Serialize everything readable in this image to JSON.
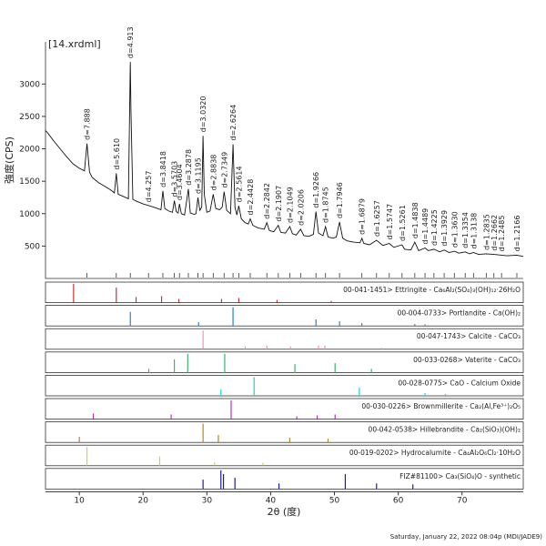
{
  "chart_data": {
    "type": "xrd",
    "title": "[14.xrdml]",
    "y_label": "強度(CPS)",
    "x_label": "2θ (度)",
    "footer": "Saturday, January 22, 2022 08:04p (MDI/JADE9)",
    "xlim": [
      4.7,
      79.6
    ],
    "ylim": [
      0,
      3650
    ],
    "xticks": [
      10,
      20,
      30,
      40,
      50,
      60,
      70
    ],
    "yticks": [
      500,
      1000,
      1500,
      2000,
      2500,
      3000
    ],
    "color": "#111111",
    "x": [
      4.7,
      5,
      6,
      7,
      8,
      9,
      10,
      10.8,
      11.2,
      11.6,
      12,
      13,
      14,
      15,
      15.5,
      15.8,
      16.1,
      17,
      17.7,
      18.0,
      18.1,
      18.4,
      19,
      20,
      21,
      22,
      22.8,
      23.1,
      23.4,
      24,
      24.6,
      24.9,
      25.2,
      25.5,
      25.7,
      26,
      26.5,
      27.1,
      27.4,
      28,
      28.3,
      28.6,
      28.9,
      29.2,
      29.4,
      29.6,
      30,
      30.5,
      31,
      31.4,
      32,
      32.4,
      32.7,
      33.1,
      33.7,
      34.1,
      34.4,
      34.7,
      35,
      35.4,
      36,
      36.5,
      36.8,
      37.2,
      38,
      39,
      39.4,
      39.8,
      40.5,
      41.2,
      41.6,
      42.3,
      43,
      43.4,
      44,
      44.7,
      45.2,
      46,
      46.7,
      47.1,
      47.5,
      48.2,
      48.6,
      49,
      49.8,
      50.3,
      50.8,
      51.3,
      52,
      53,
      54,
      54.3,
      54.6,
      55.5,
      56.6,
      57.6,
      58.6,
      59.3,
      60.6,
      61,
      62,
      62.6,
      63.2,
      64.2,
      64.7,
      65.6,
      66.5,
      67.2,
      68,
      68.8,
      69.5,
      70.5,
      71.2,
      71.8,
      72.6,
      73.8,
      75,
      76.2,
      77,
      78.6,
      79.6
    ],
    "values": [
      2280,
      2250,
      2120,
      2000,
      1880,
      1770,
      1700,
      1660,
      2080,
      1640,
      1560,
      1480,
      1420,
      1360,
      1320,
      1620,
      1300,
      1260,
      1230,
      3340,
      2600,
      1220,
      1190,
      1150,
      1120,
      1090,
      1060,
      1350,
      1080,
      1040,
      1020,
      1200,
      1030,
      1010,
      1150,
      1000,
      980,
      1380,
      1010,
      990,
      1000,
      1250,
      1050,
      1100,
      2200,
      1300,
      1020,
      1040,
      1300,
      1080,
      1060,
      1100,
      1340,
      1050,
      1000,
      2070,
      1100,
      980,
      1120,
      920,
      860,
      840,
      920,
      820,
      780,
      760,
      860,
      740,
      720,
      820,
      710,
      700,
      800,
      690,
      670,
      760,
      660,
      650,
      680,
      1030,
      700,
      660,
      800,
      640,
      620,
      640,
      870,
      620,
      580,
      560,
      550,
      620,
      540,
      520,
      590,
      510,
      540,
      480,
      520,
      450,
      440,
      560,
      430,
      470,
      430,
      450,
      410,
      440,
      400,
      420,
      390,
      410,
      380,
      400,
      370,
      380,
      370,
      360,
      350,
      360,
      340
    ],
    "annotations": [
      {
        "x": 11.2,
        "label": "d=7.888"
      },
      {
        "x": 15.8,
        "label": "d=5.610"
      },
      {
        "x": 18.0,
        "label": "d=4.913"
      },
      {
        "x": 20.85,
        "label": "d=4.257"
      },
      {
        "x": 23.1,
        "label": "d=3.8418"
      },
      {
        "x": 24.9,
        "label": "d=3.5703"
      },
      {
        "x": 25.7,
        "label": "d=3.4604"
      },
      {
        "x": 27.1,
        "label": "d=3.2878"
      },
      {
        "x": 28.6,
        "label": "d=3.1195"
      },
      {
        "x": 29.4,
        "label": "d=3.0320"
      },
      {
        "x": 31.0,
        "label": "d=2.8838"
      },
      {
        "x": 32.7,
        "label": "d=2.7349"
      },
      {
        "x": 34.1,
        "label": "d=2.6264"
      },
      {
        "x": 35.0,
        "label": "d=2.5614"
      },
      {
        "x": 36.8,
        "label": "d=2.4428"
      },
      {
        "x": 39.4,
        "label": "d=2.2842"
      },
      {
        "x": 41.2,
        "label": "d=2.1907"
      },
      {
        "x": 43.0,
        "label": "d=2.1049"
      },
      {
        "x": 44.7,
        "label": "d=2.0206"
      },
      {
        "x": 47.1,
        "label": "d=1.9266"
      },
      {
        "x": 48.6,
        "label": "d=1.8745"
      },
      {
        "x": 50.8,
        "label": "d=1.7946"
      },
      {
        "x": 54.3,
        "label": "d=1.6879"
      },
      {
        "x": 56.6,
        "label": "d=1.6257"
      },
      {
        "x": 58.6,
        "label": "d=1.5747"
      },
      {
        "x": 60.6,
        "label": "d=1.5261"
      },
      {
        "x": 62.6,
        "label": "d=1.4838"
      },
      {
        "x": 64.2,
        "label": "d=1.4489"
      },
      {
        "x": 65.6,
        "label": "d=1.4225"
      },
      {
        "x": 67.2,
        "label": "d=1.3929"
      },
      {
        "x": 68.8,
        "label": "d=1.3630"
      },
      {
        "x": 70.5,
        "label": "d=1.3354"
      },
      {
        "x": 71.8,
        "label": "d=1.3138"
      },
      {
        "x": 73.8,
        "label": "d=1.2835"
      },
      {
        "x": 75.0,
        "label": "d=1.2662"
      },
      {
        "x": 76.2,
        "label": "d=1.2485"
      },
      {
        "x": 78.6,
        "label": "d=1.2166"
      }
    ],
    "phases": [
      {
        "name": "00-041-1451> Ettringite - Ca₆Al₂(SO₄)₃(OH)₁₂·26H₂O",
        "color": "#cc3333",
        "x": [
          9.1,
          15.8,
          18.9,
          22.9,
          25.6,
          32.3,
          35.0,
          41.0,
          49.5
        ],
        "values": [
          100,
          80,
          30,
          35,
          20,
          20,
          25,
          15,
          10
        ]
      },
      {
        "name": "00-004-0733> Portlandite - Ca(OH)₂",
        "color": "#2a7fd4",
        "x": [
          18.0,
          28.7,
          34.1,
          47.1,
          50.8,
          54.3,
          62.6,
          64.2
        ],
        "values": [
          75,
          20,
          100,
          35,
          25,
          15,
          10,
          8
        ]
      },
      {
        "name": "00-047-1743> Calcite - CaCO₃",
        "color": "#ff8fb0",
        "x": [
          29.4,
          36.0,
          39.4,
          43.1,
          47.5,
          48.5,
          57.4
        ],
        "values": [
          100,
          15,
          20,
          15,
          20,
          20,
          8
        ]
      },
      {
        "name": "00-033-0268> Vaterite - CaCO₃",
        "color": "#3cb371",
        "x": [
          20.9,
          24.9,
          27.0,
          32.8,
          43.8,
          50.1,
          55.8
        ],
        "values": [
          20,
          70,
          100,
          100,
          45,
          50,
          20
        ]
      },
      {
        "name": "00-028-0775> CaO - Calcium Oxide",
        "color": "#22cccc",
        "x": [
          32.2,
          37.4,
          53.9,
          64.2,
          67.4
        ],
        "values": [
          35,
          100,
          45,
          15,
          10
        ]
      },
      {
        "name": "00-030-0226> Brownmillerite - Ca₂(Al,Fe³⁺)₂O₅",
        "color": "#c030c0",
        "x": [
          12.2,
          24.4,
          33.8,
          44.1,
          47.3,
          50.1
        ],
        "values": [
          30,
          25,
          100,
          15,
          20,
          25
        ]
      },
      {
        "name": "00-042-0538> Hillebrandite - Ca₂(SiO₃)(OH)₂",
        "color": "#c08020",
        "x": [
          10.0,
          29.4,
          31.8,
          43.0,
          49.0
        ],
        "values": [
          30,
          100,
          40,
          25,
          20
        ]
      },
      {
        "name": "00-019-0202> Hydrocalumite - Ca₄Al₂O₆Cl₂·10H₂O",
        "color": "#d4d040",
        "x": [
          11.2,
          22.6,
          31.2,
          38.8
        ],
        "values": [
          100,
          50,
          20,
          15
        ]
      },
      {
        "name": "FIZ#81100> Ca₃(SiO₄)O - synthetic",
        "color": "#1a1aaa",
        "x": [
          29.4,
          32.2,
          32.6,
          34.4,
          41.3,
          51.7,
          56.6,
          62.3
        ],
        "values": [
          50,
          100,
          80,
          60,
          30,
          80,
          30,
          25
        ]
      }
    ]
  }
}
